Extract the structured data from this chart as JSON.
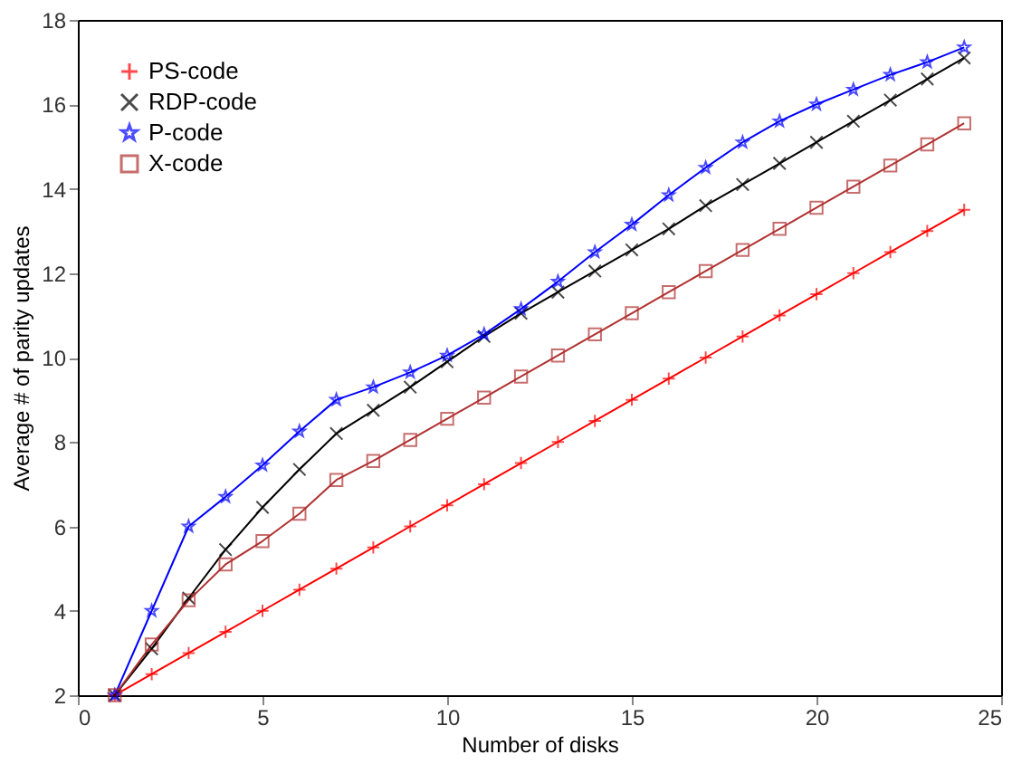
{
  "chart_data": {
    "type": "line",
    "xlabel": "Number of disks",
    "ylabel": "Average # of parity updates",
    "x": [
      1,
      2,
      3,
      4,
      5,
      6,
      7,
      8,
      9,
      10,
      11,
      12,
      13,
      14,
      15,
      16,
      17,
      18,
      19,
      20,
      21,
      22,
      23,
      24
    ],
    "series": [
      {
        "name": "PS-code",
        "color": "#ff0000",
        "marker": "cross",
        "values": [
          2,
          2.5,
          3,
          3.5,
          4,
          4.5,
          5,
          5.5,
          6,
          6.5,
          7,
          7.5,
          8,
          8.5,
          9,
          9.5,
          10,
          10.5,
          11,
          11.5,
          12,
          12.5,
          13,
          13.5
        ]
      },
      {
        "name": "RDP-code",
        "color": "#000000",
        "marker": "x",
        "values": [
          2,
          3.1,
          4.3,
          5.45,
          6.45,
          7.35,
          8.2,
          8.75,
          9.3,
          9.9,
          10.5,
          11.05,
          11.55,
          12.05,
          12.55,
          13.05,
          13.6,
          14.1,
          14.6,
          15.1,
          15.6,
          16.1,
          16.6,
          17.1
        ]
      },
      {
        "name": "P-code",
        "color": "#0000ff",
        "marker": "star",
        "values": [
          2,
          4,
          6,
          6.7,
          7.45,
          8.25,
          9,
          9.3,
          9.65,
          10.05,
          10.55,
          11.15,
          11.8,
          12.5,
          13.15,
          13.85,
          14.5,
          15.1,
          15.6,
          16,
          16.35,
          16.7,
          17,
          17.35
        ]
      },
      {
        "name": "X-code",
        "color": "#b03030",
        "marker": "square",
        "values": [
          2,
          3.2,
          4.25,
          5.1,
          5.65,
          6.3,
          7.1,
          7.55,
          8.05,
          8.55,
          9.05,
          9.55,
          10.05,
          10.55,
          11.05,
          11.55,
          12.05,
          12.55,
          13.05,
          13.55,
          14.05,
          14.55,
          15.05,
          15.55
        ]
      }
    ],
    "xlim": [
      0,
      25
    ],
    "xticks": [
      0,
      5,
      10,
      15,
      20,
      25
    ],
    "ylim": [
      2,
      18
    ],
    "yticks": [
      2,
      4,
      6,
      8,
      10,
      12,
      14,
      16,
      18
    ],
    "grid": false,
    "legend": "top left",
    "line_style": "solid"
  }
}
